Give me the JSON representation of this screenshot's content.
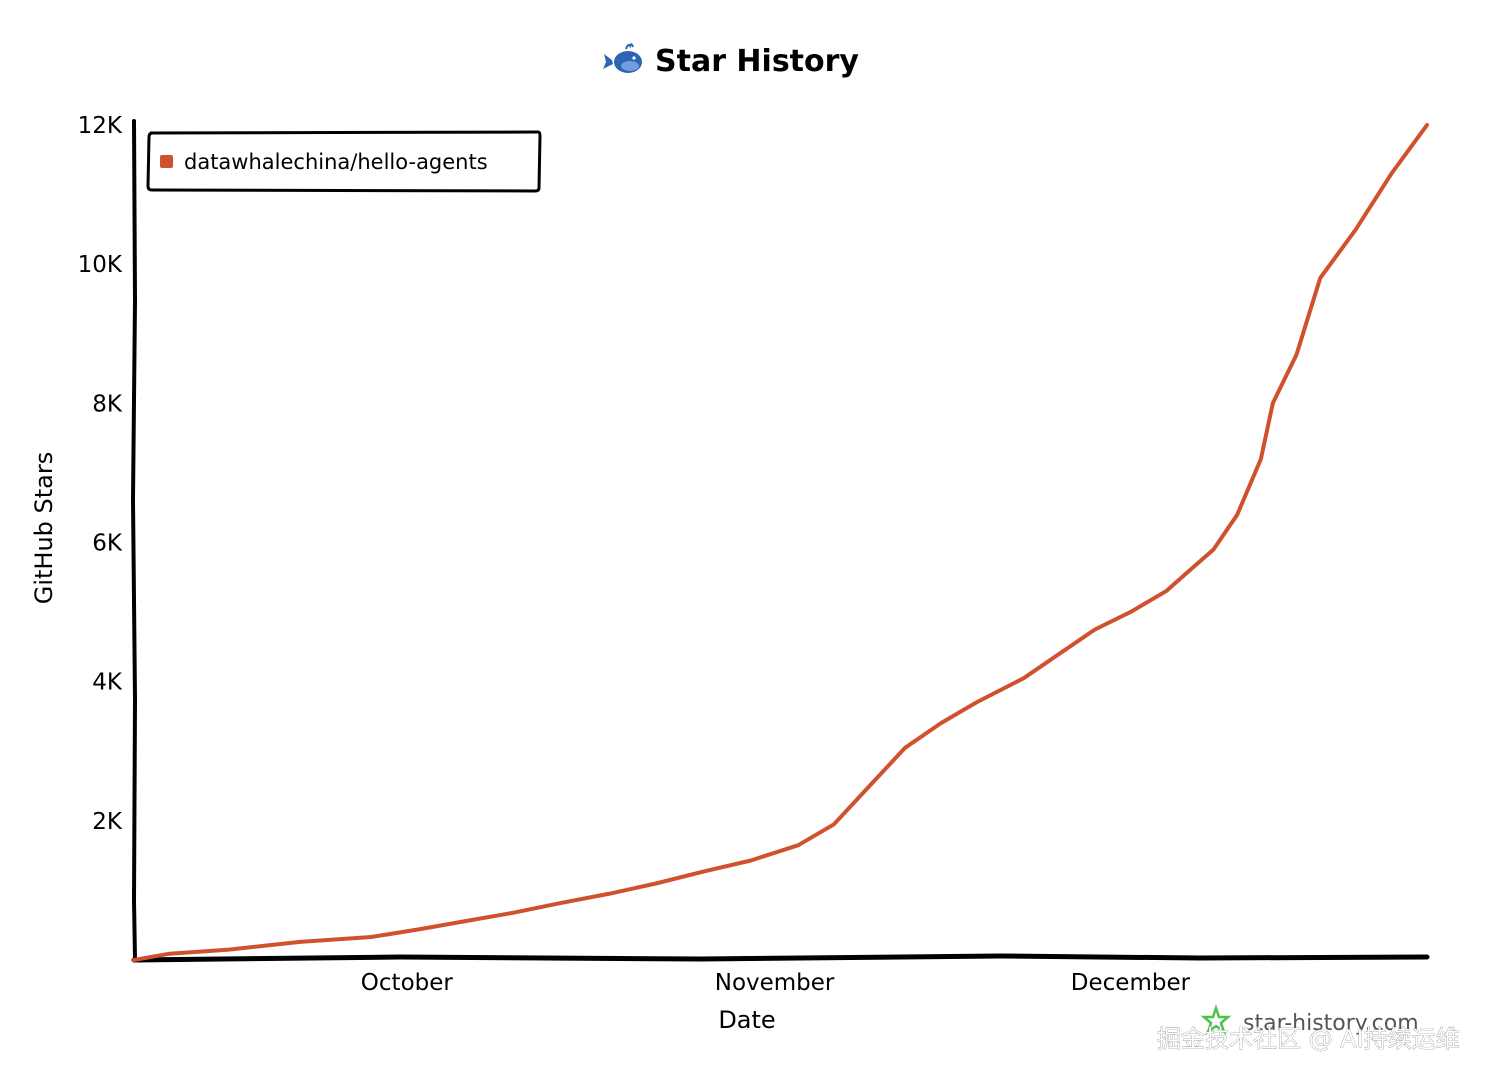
{
  "chart_data": {
    "type": "line",
    "title": "Star History",
    "xlabel": "Date",
    "ylabel": "GitHub Stars",
    "x_tick_labels": [
      "October",
      "November",
      "December"
    ],
    "y_tick_labels": [
      "2K",
      "4K",
      "6K",
      "8K",
      "10K",
      "12K"
    ],
    "ylim": [
      0,
      12000
    ],
    "legend_position": "top-left",
    "series": [
      {
        "name": "datawhalechina/hello-agents",
        "color": "#d0512e",
        "points": [
          {
            "x": "2025-09-08",
            "y": 0
          },
          {
            "x": "2025-09-11",
            "y": 90
          },
          {
            "x": "2025-09-16",
            "y": 150
          },
          {
            "x": "2025-09-22",
            "y": 260
          },
          {
            "x": "2025-09-28",
            "y": 330
          },
          {
            "x": "2025-10-02",
            "y": 440
          },
          {
            "x": "2025-10-06",
            "y": 560
          },
          {
            "x": "2025-10-10",
            "y": 680
          },
          {
            "x": "2025-10-14",
            "y": 820
          },
          {
            "x": "2025-10-18",
            "y": 950
          },
          {
            "x": "2025-10-22",
            "y": 1100
          },
          {
            "x": "2025-10-26",
            "y": 1270
          },
          {
            "x": "2025-10-30",
            "y": 1430
          },
          {
            "x": "2025-11-03",
            "y": 1650
          },
          {
            "x": "2025-11-06",
            "y": 1950
          },
          {
            "x": "2025-11-09",
            "y": 2500
          },
          {
            "x": "2025-11-12",
            "y": 3050
          },
          {
            "x": "2025-11-15",
            "y": 3400
          },
          {
            "x": "2025-11-18",
            "y": 3700
          },
          {
            "x": "2025-11-22",
            "y": 4050
          },
          {
            "x": "2025-11-25",
            "y": 4400
          },
          {
            "x": "2025-11-28",
            "y": 4750
          },
          {
            "x": "2025-12-01",
            "y": 5000
          },
          {
            "x": "2025-12-04",
            "y": 5300
          },
          {
            "x": "2025-12-06",
            "y": 5600
          },
          {
            "x": "2025-12-08",
            "y": 5900
          },
          {
            "x": "2025-12-10",
            "y": 6400
          },
          {
            "x": "2025-12-12",
            "y": 7200
          },
          {
            "x": "2025-12-13",
            "y": 8000
          },
          {
            "x": "2025-12-15",
            "y": 8700
          },
          {
            "x": "2025-12-17",
            "y": 9800
          },
          {
            "x": "2025-12-20",
            "y": 10500
          },
          {
            "x": "2025-12-23",
            "y": 11300
          },
          {
            "x": "2025-12-26",
            "y": 12000
          }
        ]
      }
    ]
  },
  "branding": {
    "whale_icon": "whale-icon",
    "site_icon": "star-history-logo-icon",
    "site_text": "star-history.com"
  },
  "watermark": {
    "text": "掘金技术社区 @ AI持续运维"
  }
}
